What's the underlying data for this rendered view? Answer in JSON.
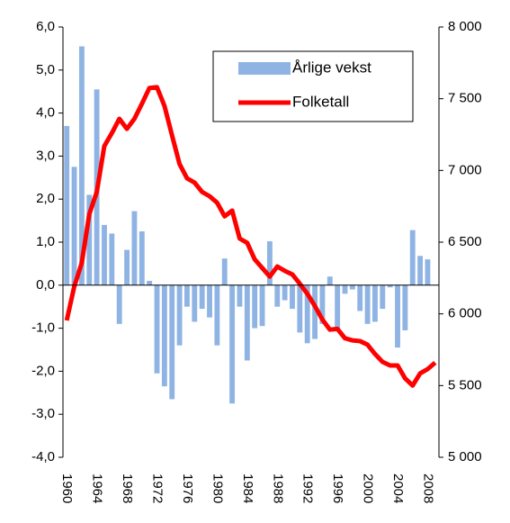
{
  "chart_data": {
    "type": "bar_line",
    "categories": [
      "1960",
      null,
      null,
      null,
      "1964",
      null,
      null,
      null,
      "1968",
      null,
      null,
      null,
      "1972",
      null,
      null,
      null,
      "1976",
      null,
      null,
      null,
      "1980",
      null,
      null,
      null,
      "1984",
      null,
      null,
      null,
      "1988",
      null,
      null,
      null,
      "1992",
      null,
      null,
      null,
      "1996",
      null,
      null,
      null,
      "2000",
      null,
      null,
      null,
      "2004",
      null,
      null,
      null,
      "2008",
      null
    ],
    "series": [
      {
        "name": "Årlige vekst",
        "type": "bar",
        "color": "#8fb4e3",
        "values": [
          3.7,
          2.75,
          5.55,
          2.1,
          4.55,
          1.4,
          1.2,
          -0.9,
          0.82,
          1.72,
          1.25,
          0.1,
          -2.05,
          -2.35,
          -2.65,
          -1.4,
          -0.5,
          -0.85,
          -0.55,
          -0.75,
          -1.4,
          0.62,
          -2.75,
          -0.5,
          -1.75,
          -1.0,
          -0.95,
          1.02,
          -0.5,
          -0.35,
          -0.55,
          -1.1,
          -1.35,
          -1.25,
          -0.9,
          0.2,
          -1.05,
          -0.2,
          -0.1,
          -0.6,
          -0.9,
          -0.85,
          -0.55,
          -0.05,
          -1.45,
          -1.05,
          1.28,
          0.68,
          0.6,
          null
        ]
      },
      {
        "name": "Folketall",
        "type": "line",
        "axis": "y2",
        "color": "#ff0000",
        "values": [
          5954,
          6190,
          6355,
          6695,
          6850,
          7170,
          7260,
          7360,
          7290,
          7360,
          7465,
          7575,
          7580,
          7450,
          7245,
          7045,
          6945,
          6915,
          6850,
          6820,
          6775,
          6680,
          6720,
          6525,
          6495,
          6380,
          6320,
          6260,
          6330,
          6300,
          6275,
          6210,
          6140,
          6055,
          5960,
          5890,
          5895,
          5830,
          5815,
          5810,
          5785,
          5720,
          5665,
          5640,
          5640,
          5550,
          5500,
          5585,
          5615,
          5660
        ]
      }
    ],
    "ylim": [
      -4,
      6
    ],
    "yticks": [
      {
        "value": -4,
        "label": "-4,0"
      },
      {
        "value": -3,
        "label": "-3,0"
      },
      {
        "value": -2,
        "label": "-2,0"
      },
      {
        "value": -1,
        "label": "-1,0"
      },
      {
        "value": 0,
        "label": "0,0"
      },
      {
        "value": 1,
        "label": "1,0"
      },
      {
        "value": 2,
        "label": "2,0"
      },
      {
        "value": 3,
        "label": "3,0"
      },
      {
        "value": 4,
        "label": "4,0"
      },
      {
        "value": 5,
        "label": "5,0"
      },
      {
        "value": 6,
        "label": "6,0"
      }
    ],
    "y2lim": [
      5000,
      8000
    ],
    "y2ticks": [
      {
        "value": 5000,
        "label": "5 000"
      },
      {
        "value": 5500,
        "label": "5 500"
      },
      {
        "value": 6000,
        "label": "6 000"
      },
      {
        "value": 6500,
        "label": "6 500"
      },
      {
        "value": 7000,
        "label": "7 000"
      },
      {
        "value": 7500,
        "label": "7 500"
      },
      {
        "value": 8000,
        "label": "8 000"
      }
    ],
    "legend": "upper right"
  }
}
